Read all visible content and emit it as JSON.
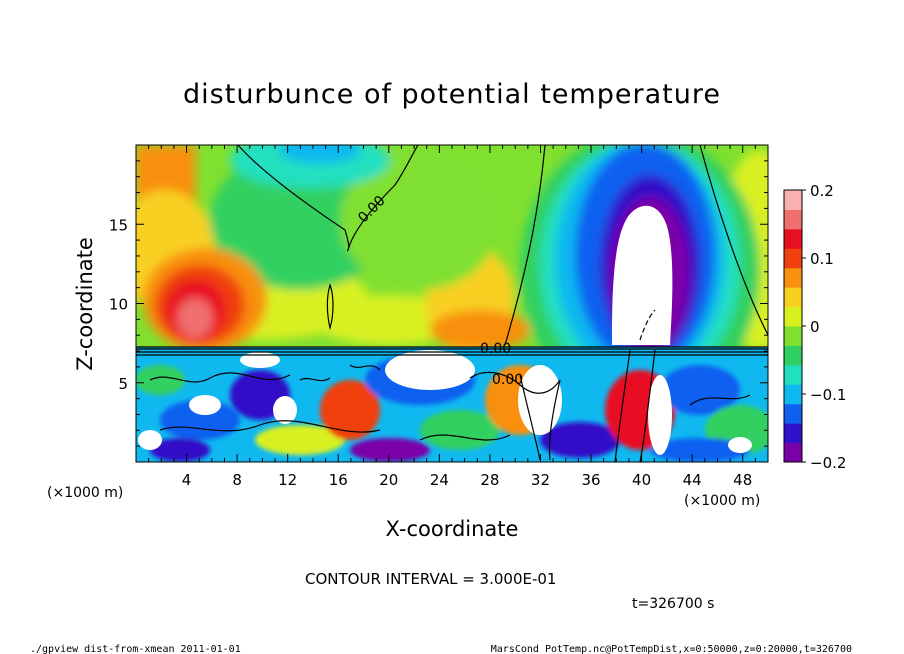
{
  "chart_data": {
    "type": "heatmap",
    "title": "disturbunce of potential temperature",
    "xlabel": "X-coordinate",
    "ylabel": "Z-coordinate",
    "x_unit_label": "(×1000 m)",
    "y_unit_label": "(×1000 m)",
    "xlim": [
      0,
      50
    ],
    "ylim": [
      0,
      20
    ],
    "x_ticks": [
      "4",
      "8",
      "12",
      "16",
      "20",
      "24",
      "28",
      "32",
      "36",
      "40",
      "44",
      "48"
    ],
    "y_ticks": [
      "5",
      "10",
      "15"
    ],
    "colorbar": {
      "min": -0.2,
      "max": 0.2,
      "ticks": [
        "0.2",
        "0.1",
        "0",
        "−0.1",
        "−0.2"
      ],
      "colors": [
        "#7a00a8",
        "#3010c8",
        "#1060f0",
        "#10b8f0",
        "#20e0c0",
        "#30d060",
        "#80e030",
        "#d8f020",
        "#f8d020",
        "#f89010",
        "#f04010",
        "#e81020",
        "#f07070",
        "#f8b0b0"
      ]
    },
    "contour_labels": [
      "0.00",
      "0.00",
      "0.00"
    ],
    "contour_interval_text": "CONTOUR INTERVAL = 3.000E-01",
    "time_text": "t=326700 s",
    "features": [
      {
        "kind": "negative-core",
        "x": 40,
        "z": 13.5,
        "value": -0.25
      },
      {
        "kind": "positive-core",
        "x": 5.5,
        "z": 9.5,
        "value": 0.2
      },
      {
        "kind": "minimum-upper",
        "x": 16,
        "z": 19.5,
        "value": -0.08
      },
      {
        "kind": "minimum-layer",
        "x": 14,
        "z": 4.5,
        "value": -0.12
      }
    ]
  },
  "footer": {
    "left": "./gpview_dist-from-xmean  2011-01-01",
    "right": "MarsCond_PotTemp.nc@PotTempDist,x=0:50000,z=0:20000,t=326700"
  }
}
